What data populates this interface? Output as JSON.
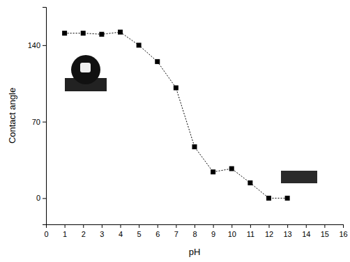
{
  "chart_data": {
    "type": "line",
    "x_label": "pH",
    "y_label": "Contact angle",
    "x": [
      1,
      2,
      3,
      4,
      5,
      6,
      7,
      8,
      9,
      10,
      11,
      12,
      13
    ],
    "values": [
      151,
      151,
      150,
      152,
      140,
      125,
      101,
      47,
      24,
      27,
      14,
      0,
      0
    ],
    "color": "#000000",
    "marker": "square",
    "line_style": "dotted",
    "xlim": [
      0,
      16
    ],
    "xticks": [
      0,
      1,
      2,
      3,
      4,
      5,
      6,
      7,
      8,
      9,
      10,
      11,
      12,
      13,
      14,
      15,
      16
    ],
    "ylim": [
      -24,
      175
    ],
    "yticks": [
      0,
      70,
      140
    ],
    "grid": false
  }
}
